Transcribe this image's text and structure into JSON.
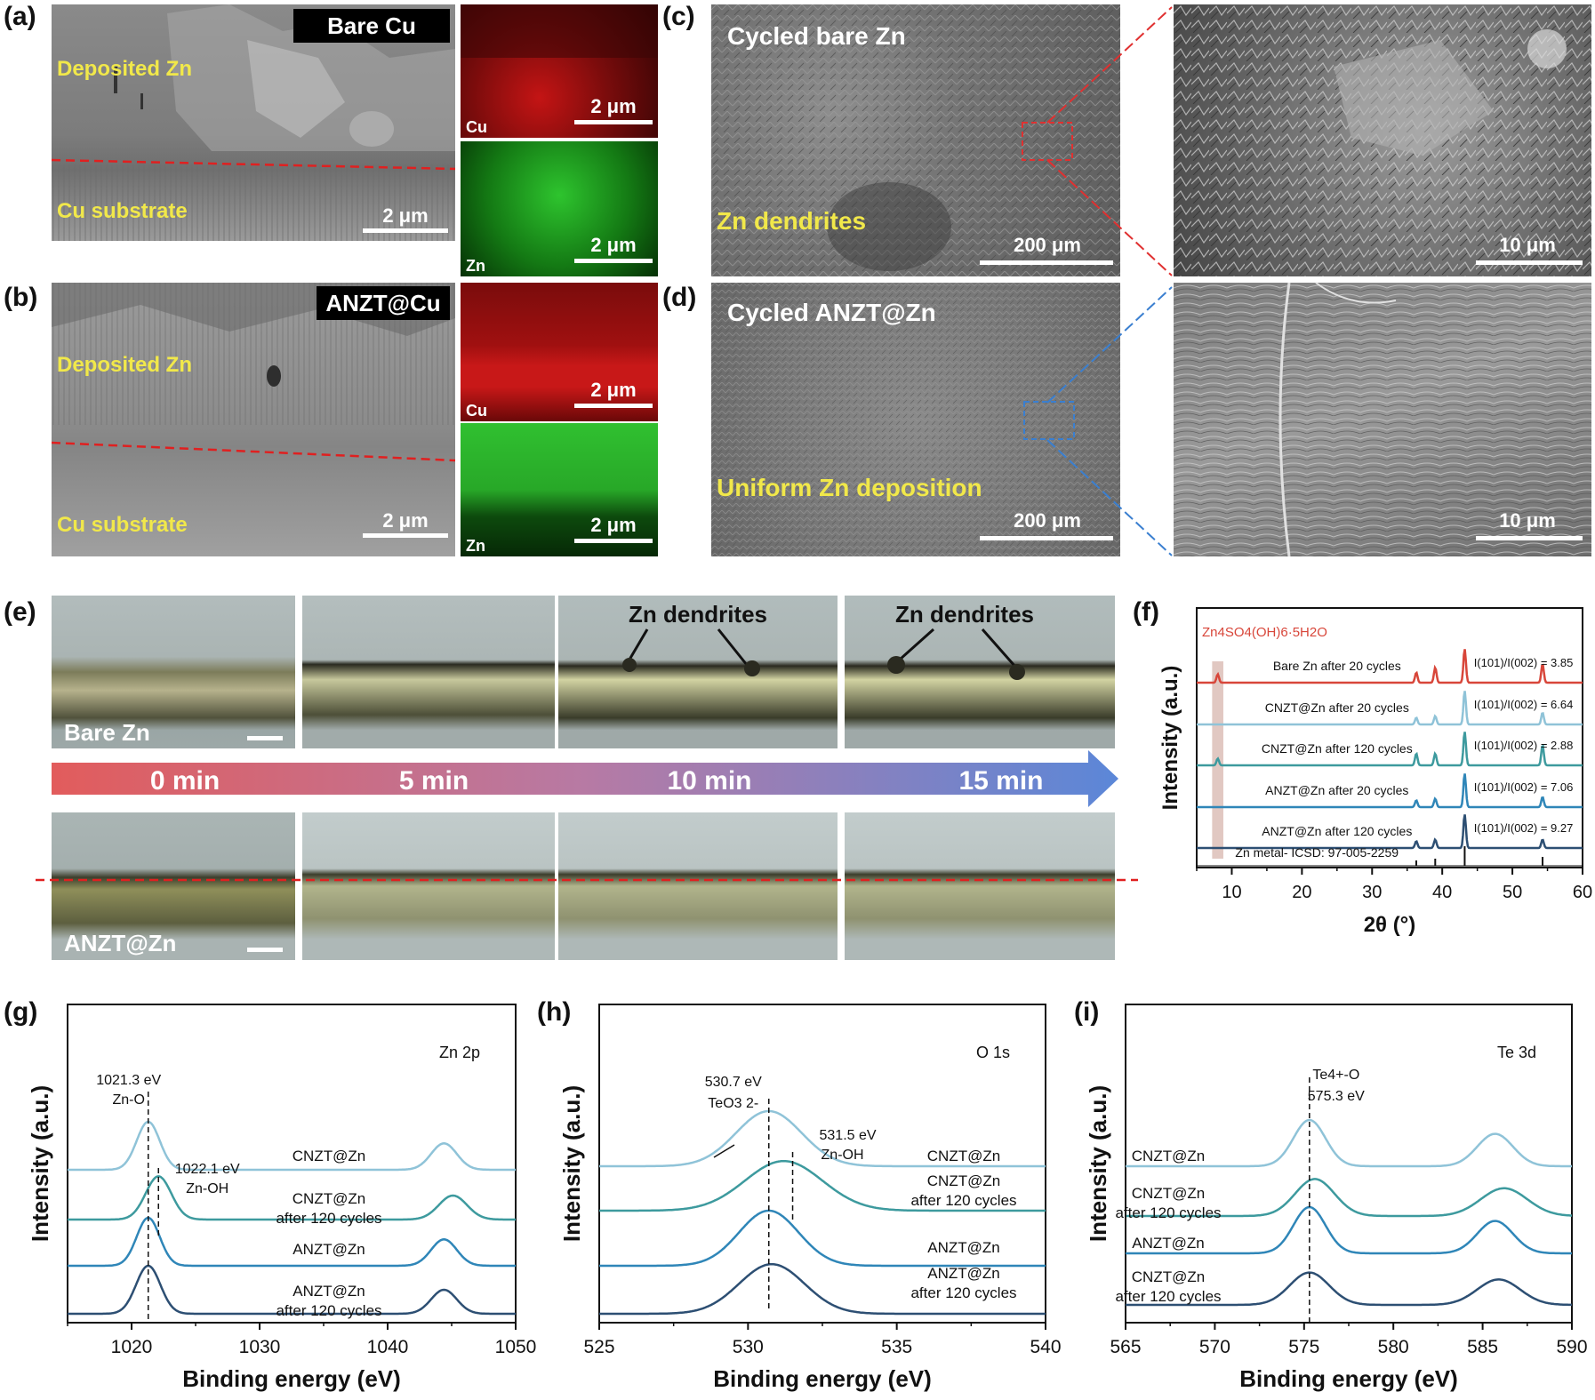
{
  "panels": {
    "a": {
      "label": "(a)",
      "tag": "Bare Cu",
      "zone_top": "Deposited Zn",
      "zone_bottom": "Cu substrate",
      "scale": "2 μm",
      "map_cu_label": "Cu",
      "map_zn_label": "Zn",
      "map_scale": "2 μm"
    },
    "b": {
      "label": "(b)",
      "tag": "ANZT@Cu",
      "zone_top": "Deposited Zn",
      "zone_bottom": "Cu substrate",
      "scale": "2 μm",
      "map_cu_label": "Cu",
      "map_zn_label": "Zn",
      "map_scale": "2 μm"
    },
    "c": {
      "label": "(c)",
      "title": "Cycled bare Zn",
      "note": "Zn dendrites",
      "scale": "200 μm",
      "zoom_scale": "10 μm"
    },
    "d": {
      "label": "(d)",
      "title": "Cycled ANZT@Zn",
      "note": "Uniform Zn deposition",
      "scale": "200 μm",
      "zoom_scale": "10 μm"
    },
    "e": {
      "label": "(e)",
      "row1": "Bare Zn",
      "row2": "ANZT@Zn",
      "dendrite_note": "Zn dendrites",
      "times": [
        "0 min",
        "5 min",
        "10 min",
        "15 min"
      ]
    },
    "f": {
      "label": "(f)"
    },
    "g": {
      "label": "(g)"
    },
    "h": {
      "label": "(h)"
    },
    "i": {
      "label": "(i)"
    }
  },
  "colors": {
    "bare": "#d8463a",
    "cnzt20": "#8fc3d8",
    "cnzt120": "#3d9a9e",
    "anzt20": "#2f86b8",
    "anzt120": "#2d4f73",
    "dash_red": "#e02020",
    "yellow_text": "#f1e84a"
  },
  "chart_data": [
    {
      "id": "f",
      "type": "line",
      "title": "",
      "xlabel": "2θ (°)",
      "ylabel": "Intensity (a.u.)",
      "xlim": [
        5,
        60
      ],
      "xticks": [
        10,
        20,
        30,
        40,
        50,
        60
      ],
      "phase_label": "Zn4SO4(OH)6·5H2O",
      "reference_label": "Zn metal- ICSD: 97-005-2259",
      "reference_peaks": [
        36.3,
        39.0,
        43.2,
        54.3
      ],
      "series": [
        {
          "name": "Bare Zn after 20 cycles",
          "ratio_text": "I(101)/I(002) = 3.85",
          "peaks": [
            [
              8.0,
              0.25
            ],
            [
              36.3,
              0.3
            ],
            [
              39.0,
              0.45
            ],
            [
              43.2,
              1.0
            ],
            [
              54.3,
              0.55
            ]
          ]
        },
        {
          "name": "CNZT@Zn after 20 cycles",
          "ratio_text": "I(101)/I(002) = 6.64",
          "peaks": [
            [
              36.3,
              0.2
            ],
            [
              39.0,
              0.25
            ],
            [
              43.2,
              1.0
            ],
            [
              54.3,
              0.35
            ]
          ]
        },
        {
          "name": "CNZT@Zn after 120 cycles",
          "ratio_text": "I(101)/I(002) = 2.88",
          "peaks": [
            [
              8.0,
              0.2
            ],
            [
              36.3,
              0.35
            ],
            [
              39.0,
              0.35
            ],
            [
              43.2,
              1.0
            ],
            [
              54.3,
              0.6
            ]
          ]
        },
        {
          "name": "ANZT@Zn after 20 cycles",
          "ratio_text": "I(101)/I(002) = 7.06",
          "peaks": [
            [
              36.3,
              0.2
            ],
            [
              39.0,
              0.25
            ],
            [
              43.2,
              1.0
            ],
            [
              54.3,
              0.3
            ]
          ]
        },
        {
          "name": "ANZT@Zn after 120 cycles",
          "ratio_text": "I(101)/I(002) = 9.27",
          "peaks": [
            [
              36.3,
              0.2
            ],
            [
              39.0,
              0.25
            ],
            [
              43.2,
              1.0
            ],
            [
              54.3,
              0.25
            ]
          ]
        }
      ]
    },
    {
      "id": "g",
      "type": "line",
      "title": "Zn 2p",
      "xlabel": "Binding energy (eV)",
      "ylabel": "Intensity (a.u.)",
      "xlim": [
        1015,
        1050
      ],
      "xticks": [
        1020,
        1030,
        1040,
        1050
      ],
      "annotations": [
        {
          "text": "1021.3 eV",
          "x": 1021.3
        },
        {
          "text": "Zn-O",
          "x": 1021.3
        },
        {
          "text": "1022.1 eV",
          "x": 1022.1
        },
        {
          "text": "Zn-OH",
          "x": 1022.1
        }
      ],
      "series": [
        {
          "name": "CNZT@Zn",
          "peaks": [
            [
              1021.3,
              1.0,
              0.9
            ],
            [
              1044.4,
              0.55,
              1.0
            ]
          ]
        },
        {
          "name": "CNZT@Zn after 120 cycles",
          "peaks": [
            [
              1022.1,
              0.9,
              1.0
            ],
            [
              1045.1,
              0.5,
              1.1
            ]
          ]
        },
        {
          "name": "ANZT@Zn",
          "peaks": [
            [
              1021.3,
              1.0,
              0.9
            ],
            [
              1044.4,
              0.55,
              1.0
            ]
          ]
        },
        {
          "name": "ANZT@Zn after 120 cycles",
          "peaks": [
            [
              1021.3,
              1.0,
              0.95
            ],
            [
              1044.4,
              0.5,
              1.0
            ]
          ]
        }
      ]
    },
    {
      "id": "h",
      "type": "line",
      "title": "O 1s",
      "xlabel": "Binding energy (eV)",
      "ylabel": "Intensity (a.u.)",
      "xlim": [
        525,
        540
      ],
      "xticks": [
        525,
        530,
        535,
        540
      ],
      "annotations": [
        {
          "text": "530.7 eV",
          "x": 530.7
        },
        {
          "text": "TeO3 2-",
          "x": 530.7
        },
        {
          "text": "531.5 eV",
          "x": 531.5
        },
        {
          "text": "Zn-OH",
          "x": 531.5
        }
      ],
      "series": [
        {
          "name": "CNZT@Zn",
          "peaks": [
            [
              530.7,
              1.0,
              1.1
            ]
          ]
        },
        {
          "name": "CNZT@Zn after 120 cycles",
          "peaks": [
            [
              531.2,
              0.9,
              1.3
            ]
          ]
        },
        {
          "name": "ANZT@Zn",
          "peaks": [
            [
              530.7,
              1.0,
              1.0
            ]
          ]
        },
        {
          "name": "ANZT@Zn after 120 cycles",
          "peaks": [
            [
              530.8,
              0.9,
              1.1
            ]
          ]
        }
      ]
    },
    {
      "id": "i",
      "type": "line",
      "title": "Te 3d",
      "xlabel": "Binding energy (eV)",
      "ylabel": "Intensity (a.u.)",
      "xlim": [
        565,
        590
      ],
      "xticks": [
        565,
        570,
        575,
        580,
        585,
        590
      ],
      "annotations": [
        {
          "text": "Te4+-O",
          "x": 575.3
        },
        {
          "text": "575.3 eV",
          "x": 575.3
        }
      ],
      "series": [
        {
          "name": "CNZT@Zn",
          "peaks": [
            [
              575.3,
              1.0,
              0.9
            ],
            [
              585.7,
              0.7,
              1.0
            ]
          ]
        },
        {
          "name": "CNZT@Zn after 120 cycles",
          "peaks": [
            [
              575.6,
              0.8,
              1.1
            ],
            [
              586.2,
              0.6,
              1.3
            ]
          ]
        },
        {
          "name": "ANZT@Zn",
          "peaks": [
            [
              575.3,
              1.0,
              0.9
            ],
            [
              585.7,
              0.7,
              1.0
            ]
          ]
        },
        {
          "name": "CNZT@Zn after 120 cycles",
          "peaks": [
            [
              575.3,
              0.7,
              1.1
            ],
            [
              585.9,
              0.55,
              1.2
            ]
          ]
        }
      ]
    }
  ]
}
